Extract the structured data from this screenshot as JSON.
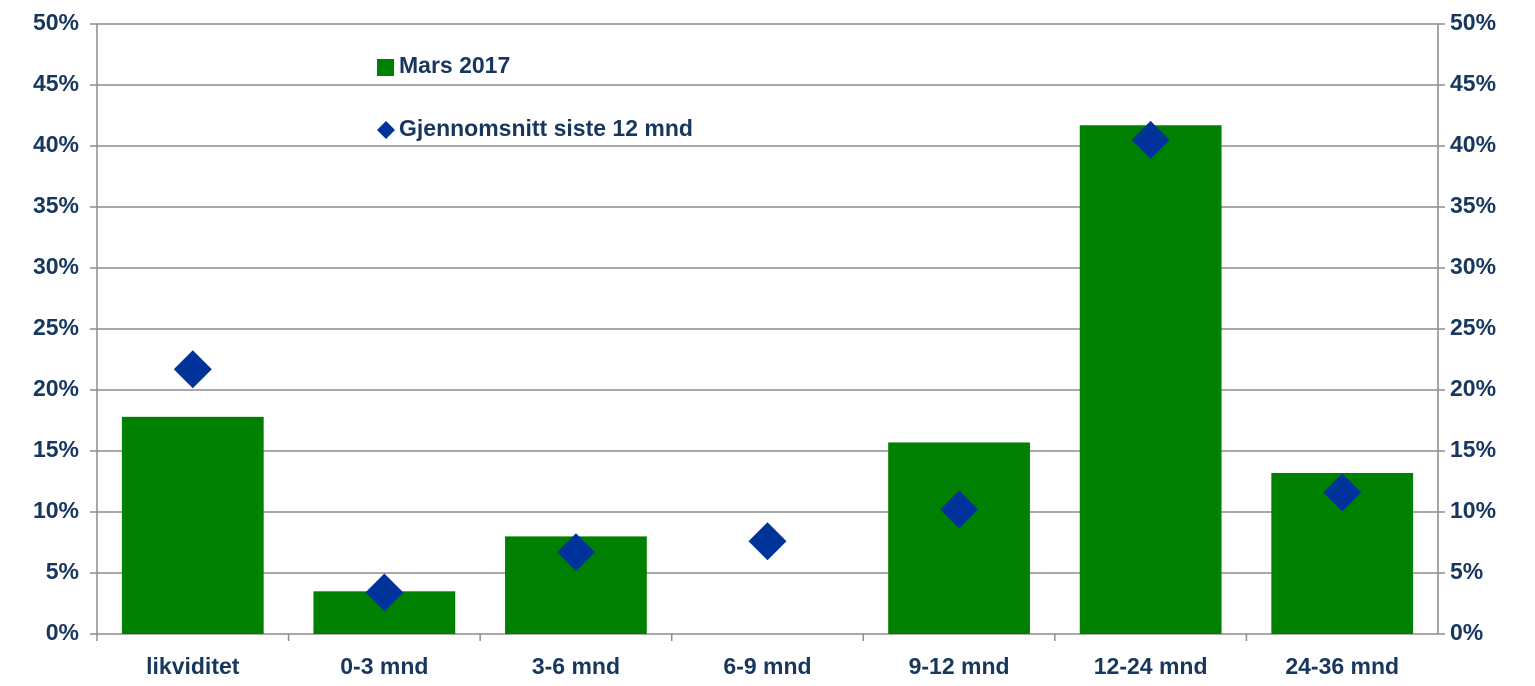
{
  "chart_data": {
    "type": "bar",
    "categories": [
      "likviditet",
      "0-3 mnd",
      "3-6 mnd",
      "6-9 mnd",
      "9-12 mnd",
      "12-24 mnd",
      "24-36 mnd"
    ],
    "series": [
      {
        "name": "Mars 2017",
        "type": "bar",
        "color": "#008000",
        "values": [
          17.8,
          3.5,
          8.0,
          0,
          15.7,
          41.7,
          13.2
        ]
      },
      {
        "name": "Gjennomsnitt siste 12 mnd",
        "type": "scatter",
        "axis": "y2",
        "color": "#003399",
        "values": [
          21.7,
          3.4,
          6.7,
          7.6,
          10.2,
          40.5,
          11.6
        ]
      }
    ],
    "ylim": [
      0,
      50
    ],
    "yticks": [
      {
        "value": 0,
        "label": "0%"
      },
      {
        "value": 5,
        "label": "5%"
      },
      {
        "value": 10,
        "label": "10%"
      },
      {
        "value": 15,
        "label": "15%"
      },
      {
        "value": 20,
        "label": "20%"
      },
      {
        "value": 25,
        "label": "25%"
      },
      {
        "value": 30,
        "label": "30%"
      },
      {
        "value": 35,
        "label": "35%"
      },
      {
        "value": 40,
        "label": "40%"
      },
      {
        "value": 45,
        "label": "45%"
      },
      {
        "value": 50,
        "label": "50%"
      }
    ],
    "y2lim": [
      0,
      50
    ],
    "y2ticks": [
      {
        "value": 0,
        "label": "0%"
      },
      {
        "value": 5,
        "label": "5%"
      },
      {
        "value": 10,
        "label": "10%"
      },
      {
        "value": 15,
        "label": "15%"
      },
      {
        "value": 20,
        "label": "20%"
      },
      {
        "value": 25,
        "label": "25%"
      },
      {
        "value": 30,
        "label": "30%"
      },
      {
        "value": 35,
        "label": "35%"
      },
      {
        "value": 40,
        "label": "40%"
      },
      {
        "value": 45,
        "label": "45%"
      },
      {
        "value": 50,
        "label": "50%"
      }
    ],
    "grid": true
  }
}
